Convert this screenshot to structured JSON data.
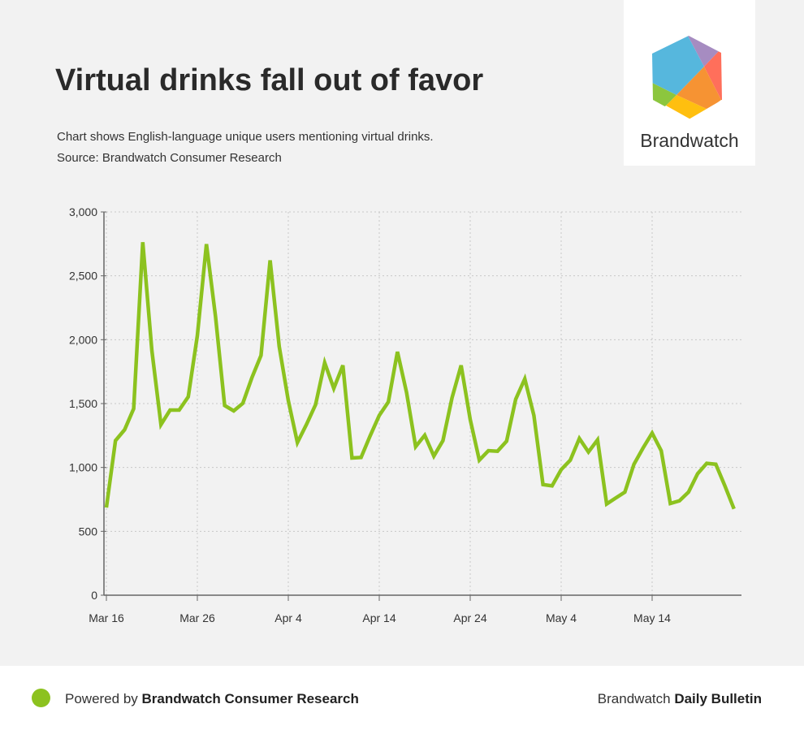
{
  "header": {
    "title": "Virtual drinks fall out of favor",
    "subtitle_line1": "Chart shows English-language unique users mentioning virtual drinks.",
    "subtitle_line2": "Source: Brandwatch Consumer Research"
  },
  "logo": {
    "text": "Brandwatch"
  },
  "footer": {
    "powered_prefix": "Powered by",
    "powered_brand": "Brandwatch Consumer Research",
    "bulletin_prefix": "Brandwatch",
    "bulletin_bold": "Daily Bulletin"
  },
  "colors": {
    "line": "#8cc21f",
    "background": "#f2f2f2",
    "grid": "#c8c8c8",
    "axis": "#666666"
  },
  "chart_data": {
    "type": "line",
    "title": "Virtual drinks fall out of favor",
    "xlabel": "",
    "ylabel": "",
    "ylim": [
      0,
      3000
    ],
    "y_ticks": [
      0,
      500,
      1000,
      1500,
      2000,
      2500,
      3000
    ],
    "y_tick_labels": [
      "0",
      "500",
      "1,000",
      "1,500",
      "2,000",
      "2,500",
      "3,000"
    ],
    "x_ticks": [
      {
        "index": 0,
        "label": "Mar 16"
      },
      {
        "index": 10,
        "label": "Mar 26"
      },
      {
        "index": 20,
        "label": "Apr 4"
      },
      {
        "index": 30,
        "label": "Apr 14"
      },
      {
        "index": 40,
        "label": "Apr 24"
      },
      {
        "index": 50,
        "label": "May 4"
      },
      {
        "index": 60,
        "label": "May 14"
      }
    ],
    "grid": true,
    "series": [
      {
        "name": "Unique users",
        "values": [
          686,
          1210,
          1295,
          1460,
          2763,
          1915,
          1335,
          1449,
          1449,
          1553,
          2032,
          2748,
          2180,
          1485,
          1443,
          1502,
          1703,
          1877,
          2621,
          1947,
          1523,
          1195,
          1337,
          1492,
          1820,
          1619,
          1799,
          1074,
          1078,
          1248,
          1407,
          1513,
          1905,
          1587,
          1163,
          1252,
          1089,
          1210,
          1545,
          1799,
          1375,
          1057,
          1131,
          1127,
          1206,
          1534,
          1693,
          1407,
          866,
          856,
          983,
          1057,
          1227,
          1121,
          1216,
          714,
          761,
          807,
          1025,
          1152,
          1269,
          1131,
          718,
          739,
          807,
          951,
          1032,
          1025,
          856,
          676
        ]
      }
    ]
  }
}
